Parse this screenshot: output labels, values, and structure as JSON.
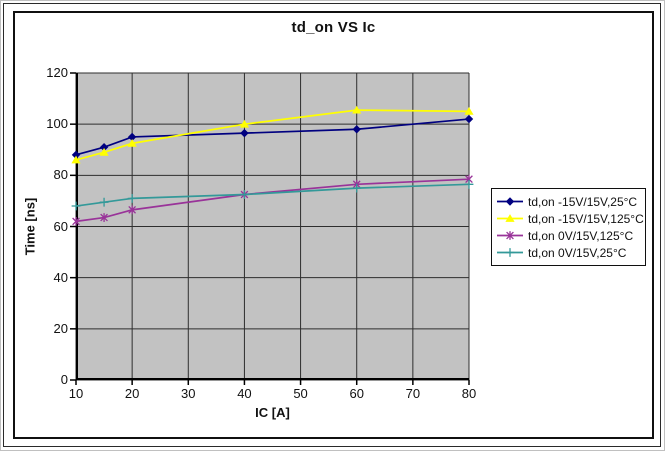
{
  "chart_data": {
    "type": "line",
    "title": "td_on VS Ic",
    "xlabel": "IC [A]",
    "ylabel": "Time [ns]",
    "x": [
      10,
      15,
      20,
      40,
      60,
      80
    ],
    "xlim": [
      10,
      80
    ],
    "ylim": [
      0,
      120
    ],
    "x_ticks": [
      10,
      20,
      30,
      40,
      50,
      60,
      70,
      80
    ],
    "y_ticks": [
      0,
      20,
      40,
      60,
      80,
      100,
      120
    ],
    "grid": true,
    "plot_bg_color": "#c2c2c2",
    "grid_color": "#2e2e2e",
    "axis_color": "#000000",
    "legend_position": "right",
    "legend_border_color": "#101010",
    "series": [
      {
        "name": "td,on -15V/15V,25°C",
        "color": "#000080",
        "marker": "diamond",
        "values": [
          88,
          91,
          95,
          96.5,
          98,
          102
        ]
      },
      {
        "name": "td,on -15V/15V,125°C",
        "color": "#ffff00",
        "marker": "triangle",
        "values": [
          86,
          89,
          92.5,
          100,
          105.5,
          105
        ]
      },
      {
        "name": "td,on 0V/15V,125°C",
        "color": "#993399",
        "marker": "star",
        "values": [
          62,
          63.5,
          66.5,
          72.5,
          76.5,
          78.5
        ]
      },
      {
        "name": "td,on 0V/15V,25°C",
        "color": "#339999",
        "marker": "plus",
        "values": [
          68,
          69.5,
          71,
          72.5,
          75,
          76.5
        ]
      }
    ]
  }
}
